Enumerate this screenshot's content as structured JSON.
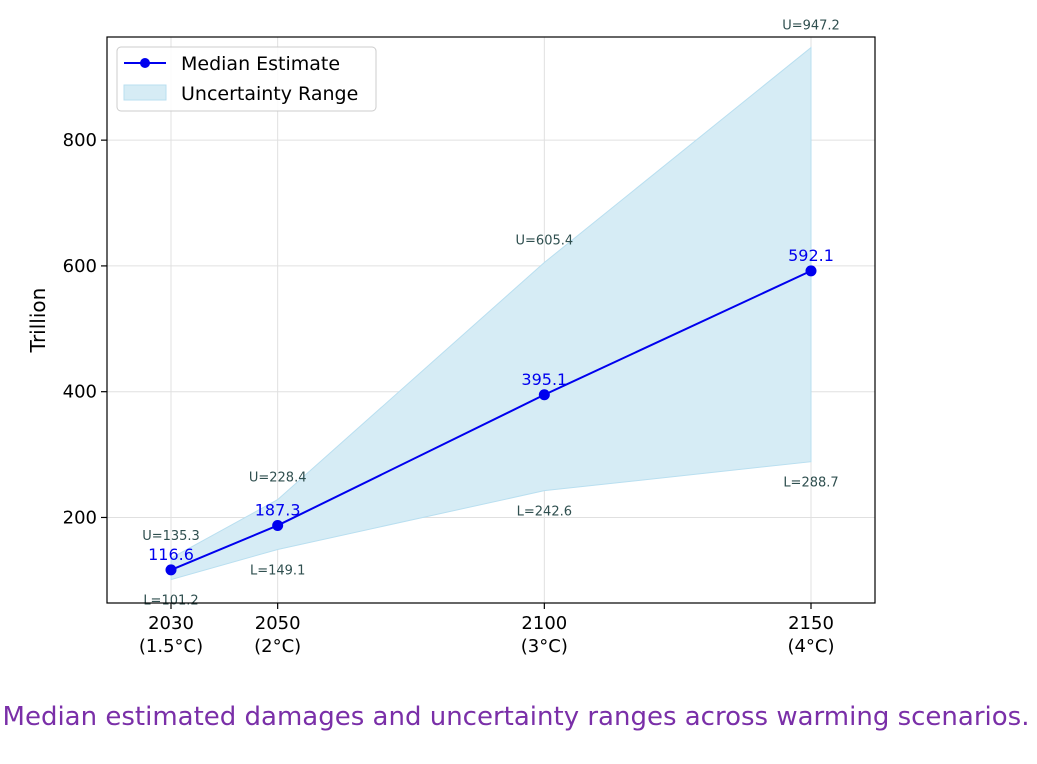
{
  "chart_data": {
    "type": "line",
    "ylabel": "Trillion",
    "xlabel": "",
    "ylim": [
      64,
      964
    ],
    "yticks": [
      200,
      400,
      600,
      800
    ],
    "x_positions": [
      2030,
      2050,
      2100,
      2150
    ],
    "x_tick_years": [
      "2030",
      "2050",
      "2100",
      "2150"
    ],
    "x_tick_scenarios": [
      "(1.5°C)",
      "(2°C)",
      "(3°C)",
      "(4°C)"
    ],
    "series": [
      {
        "name": "Median Estimate",
        "values": [
          116.6,
          187.3,
          395.1,
          592.1
        ],
        "labels": [
          "116.6",
          "187.3",
          "395.1",
          "592.1"
        ]
      }
    ],
    "band": {
      "name": "Uncertainty Range",
      "upper": [
        135.3,
        228.4,
        605.4,
        947.2
      ],
      "lower": [
        101.2,
        149.1,
        242.6,
        288.7
      ],
      "upper_labels": [
        "U=135.3",
        "U=228.4",
        "U=605.4",
        "U=947.2"
      ],
      "lower_labels": [
        "L=101.2",
        "L=149.1",
        "L=242.6",
        "L=288.7"
      ]
    },
    "legend": {
      "placement": "top-left",
      "entries": [
        "Median Estimate",
        "Uncertainty Range"
      ]
    },
    "grid": true,
    "colors": {
      "line": "#0000ee",
      "band_fill": "#d6ecf5",
      "band_edge": "#b9dff0",
      "annotation": "#2f4f4f",
      "grid": "#e0e0e0"
    }
  },
  "caption": ". Median estimated damages and uncertainty ranges across warming scenarios."
}
